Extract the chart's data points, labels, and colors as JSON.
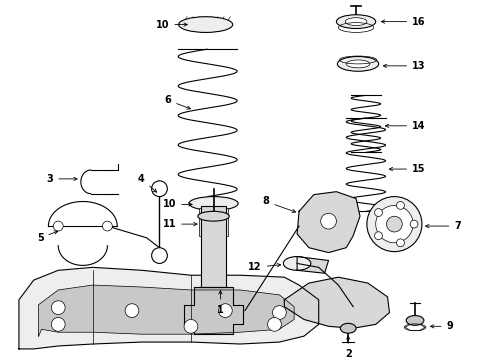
{
  "background_color": "#ffffff",
  "line_color": "#000000",
  "fig_width": 4.9,
  "fig_height": 3.6,
  "dpi": 100,
  "lw_main": 0.8,
  "lw_thin": 0.5,
  "lw_thick": 1.2,
  "gray_fill": "#d8d8d8",
  "gray_light": "#eeeeee",
  "gray_mid": "#c8c8c8",
  "label_fontsize": 7,
  "label_fontweight": "bold"
}
